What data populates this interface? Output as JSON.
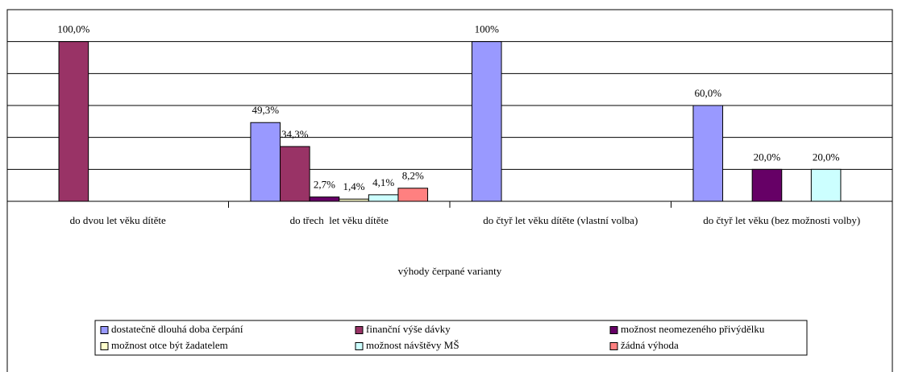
{
  "chart_data": {
    "type": "bar",
    "x_label": "výhody čerpané varianty",
    "categories": [
      "do dvou let věku dítěte",
      "do třech  let věku dítěte",
      "do čtyř let věku dítěte (vlastní volba)",
      "do čtyř let věku (bez možnosti volby)"
    ],
    "series": [
      {
        "name": "dostatečně dlouhá doba čerpání",
        "color": "#9999ff",
        "values": [
          null,
          49.3,
          100,
          60
        ],
        "value_labels": [
          null,
          "49,3%",
          "100%",
          "60,0%"
        ]
      },
      {
        "name": "finanční výše dávky",
        "color": "#993366",
        "values": [
          100,
          34.3,
          null,
          null
        ],
        "value_labels": [
          "100,0%",
          "34,3%",
          null,
          null
        ]
      },
      {
        "name": "možnost neomezeného přivýdělku",
        "color": "#660066",
        "values": [
          null,
          2.7,
          null,
          20
        ],
        "value_labels": [
          null,
          "2,7%",
          null,
          "20,0%"
        ]
      },
      {
        "name": "možnost otce být žadatelem",
        "color": "#ffffcc",
        "values": [
          null,
          1.4,
          null,
          null
        ],
        "value_labels": [
          null,
          "1,4%",
          null,
          null
        ]
      },
      {
        "name": "možnost návštěvy MŠ",
        "color": "#ccffff",
        "values": [
          null,
          4.1,
          null,
          20
        ],
        "value_labels": [
          null,
          "4,1%",
          null,
          "20,0%"
        ]
      },
      {
        "name": "žádná výhoda",
        "color": "#ff8080",
        "values": [
          null,
          8.2,
          null,
          null
        ],
        "value_labels": [
          null,
          "8,2%",
          null,
          null
        ]
      }
    ],
    "ylim": [
      0,
      120
    ],
    "yticks": [
      0,
      20,
      40,
      60,
      80,
      100,
      120
    ],
    "grid": true,
    "legend": "bottom"
  }
}
